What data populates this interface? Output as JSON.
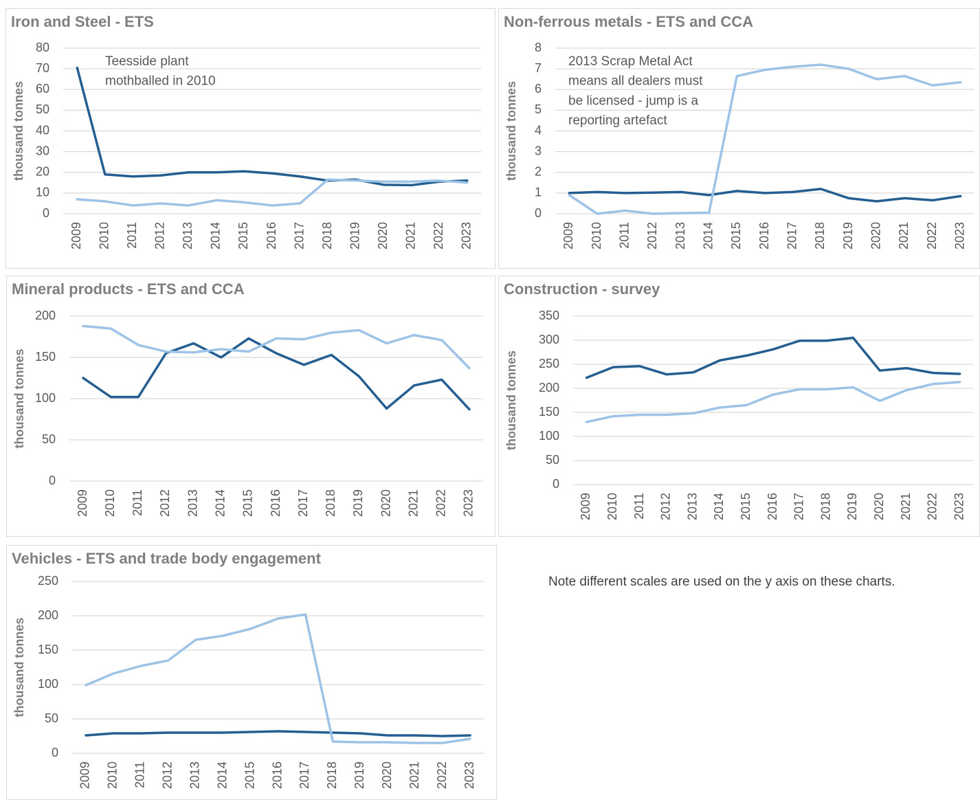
{
  "chart_data": [
    {
      "type": "line",
      "title": "Iron and Steel - ETS",
      "ylabel": "thousand tonnes",
      "categories": [
        "2009",
        "2010",
        "2011",
        "2012",
        "2013",
        "2014",
        "2015",
        "2016",
        "2017",
        "2018",
        "2019",
        "2020",
        "2021",
        "2022",
        "2023"
      ],
      "ylim": [
        0,
        80
      ],
      "yticks": [
        0,
        10,
        20,
        30,
        40,
        50,
        60,
        70,
        80
      ],
      "grid": true,
      "annotation": [
        "Teesside plant",
        "mothballed in 2010"
      ],
      "series": [
        {
          "color": "#255e91",
          "values": [
            70.5,
            19,
            18,
            18.5,
            20,
            20,
            20.5,
            19.5,
            18,
            16,
            16.5,
            14,
            13.8,
            15.5,
            16
          ]
        },
        {
          "color": "#9dc3e6",
          "values": [
            7,
            6,
            4,
            5,
            4,
            6.5,
            5.5,
            4,
            5,
            16.5,
            16,
            15.5,
            15.5,
            16,
            15
          ]
        }
      ]
    },
    {
      "type": "line",
      "title": "Non-ferrous metals - ETS and CCA",
      "ylabel": "thousand tonnes",
      "categories": [
        "2009",
        "2010",
        "2011",
        "2012",
        "2013",
        "2014",
        "2015",
        "2016",
        "2017",
        "2018",
        "2019",
        "2020",
        "2021",
        "2022",
        "2023"
      ],
      "ylim": [
        0,
        8
      ],
      "yticks": [
        0,
        1,
        2,
        3,
        4,
        5,
        6,
        7,
        8
      ],
      "grid": true,
      "annotation": [
        "2013 Scrap Metal Act",
        "means all dealers must",
        "be licensed - jump is a",
        "reporting artefact"
      ],
      "series": [
        {
          "color": "#255e91",
          "values": [
            1,
            1.05,
            1,
            1.02,
            1.05,
            0.9,
            1.1,
            1,
            1.05,
            1.2,
            0.75,
            0.6,
            0.75,
            0.65,
            0.85
          ]
        },
        {
          "color": "#9dc3e6",
          "values": [
            0.9,
            0,
            0.15,
            0,
            0.03,
            0.05,
            6.65,
            6.95,
            7.1,
            7.2,
            7,
            6.5,
            6.65,
            6.2,
            6.35
          ]
        }
      ]
    },
    {
      "type": "line",
      "title": "Mineral products - ETS and CCA",
      "ylabel": "thousand tonnes",
      "categories": [
        "2009",
        "2010",
        "2011",
        "2012",
        "2013",
        "2014",
        "2015",
        "2016",
        "2017",
        "2018",
        "2019",
        "2020",
        "2021",
        "2022",
        "2023"
      ],
      "ylim": [
        0,
        200
      ],
      "yticks": [
        0,
        50,
        100,
        150,
        200
      ],
      "grid": true,
      "series": [
        {
          "color": "#255e91",
          "values": [
            125,
            102,
            102,
            155,
            167,
            150,
            173,
            155,
            141,
            153,
            127,
            88,
            116,
            123,
            87
          ]
        },
        {
          "color": "#9dc3e6",
          "values": [
            188,
            185,
            165,
            157,
            156,
            160,
            157,
            173,
            172,
            180,
            183,
            167,
            177,
            171,
            137
          ]
        }
      ]
    },
    {
      "type": "line",
      "title": "Construction - survey",
      "ylabel": "thousand tonnes",
      "categories": [
        "2009",
        "2010",
        "2011",
        "2012",
        "2013",
        "2014",
        "2015",
        "2016",
        "2017",
        "2018",
        "2019",
        "2020",
        "2021",
        "2022",
        "2023"
      ],
      "ylim": [
        0,
        350
      ],
      "yticks": [
        0,
        50,
        100,
        150,
        200,
        250,
        300,
        350
      ],
      "grid": true,
      "series": [
        {
          "color": "#255e91",
          "values": [
            222,
            244,
            246,
            229,
            233,
            258,
            268,
            281,
            299,
            299,
            305,
            237,
            242,
            232,
            230
          ]
        },
        {
          "color": "#9dc3e6",
          "values": [
            130,
            142,
            145,
            145,
            148,
            160,
            165,
            187,
            198,
            198,
            202,
            174,
            196,
            209,
            213
          ]
        }
      ]
    },
    {
      "type": "line",
      "title": "Vehicles - ETS and trade body engagement",
      "ylabel": "thousand tonnes",
      "categories": [
        "2009",
        "2010",
        "2011",
        "2012",
        "2013",
        "2014",
        "2015",
        "2016",
        "2017",
        "2018",
        "2019",
        "2020",
        "2021",
        "2022",
        "2023"
      ],
      "ylim": [
        0,
        250
      ],
      "yticks": [
        0,
        50,
        100,
        150,
        200,
        250
      ],
      "grid": true,
      "series": [
        {
          "color": "#255e91",
          "values": [
            26,
            29,
            29,
            30,
            30,
            30,
            31,
            32,
            31,
            30,
            29,
            26,
            26,
            25,
            26
          ]
        },
        {
          "color": "#9dc3e6",
          "values": [
            99,
            116,
            127,
            135,
            165,
            171,
            181,
            196,
            202,
            17,
            16,
            16,
            15,
            15,
            21
          ]
        }
      ]
    }
  ],
  "note": "Note different scales are used on the y axis on these charts."
}
